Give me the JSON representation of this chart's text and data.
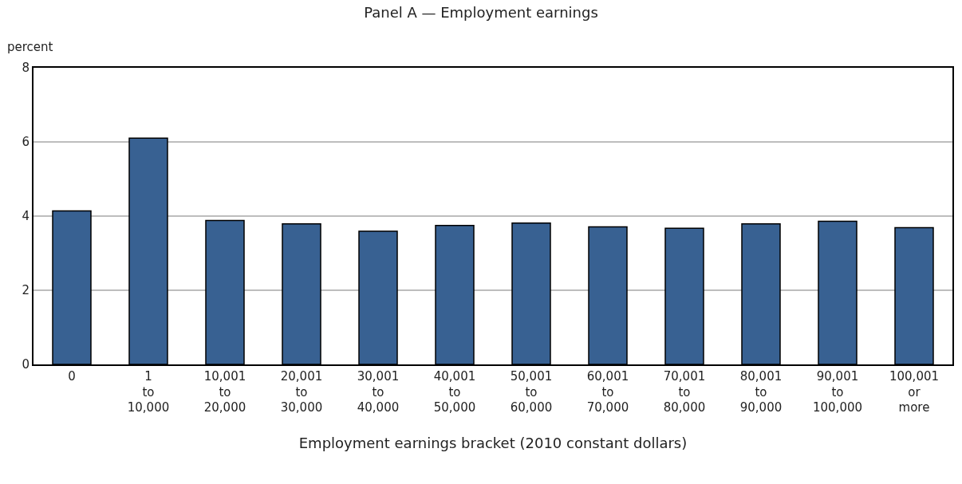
{
  "chart_data": {
    "type": "bar",
    "title": "Panel A — Employment earnings",
    "ylabel": "percent",
    "xlabel": "Employment earnings bracket (2010 constant dollars)",
    "categories": [
      "0",
      "1 to 10,000",
      "10,001 to 20,000",
      "20,001 to 30,000",
      "30,001 to 40,000",
      "40,001 to 50,000",
      "50,001 to 60,000",
      "60,001 to 70,000",
      "70,001 to 80,000",
      "80,001 to 90,000",
      "90,001 to 100,000",
      "100,001 or more"
    ],
    "values": [
      4.14,
      6.1,
      3.88,
      3.79,
      3.59,
      3.75,
      3.81,
      3.71,
      3.67,
      3.79,
      3.86,
      3.69
    ],
    "color": "#386192",
    "ylim": [
      0,
      8
    ],
    "yticks": [
      0,
      2,
      4,
      6,
      8
    ],
    "grid": "y"
  }
}
